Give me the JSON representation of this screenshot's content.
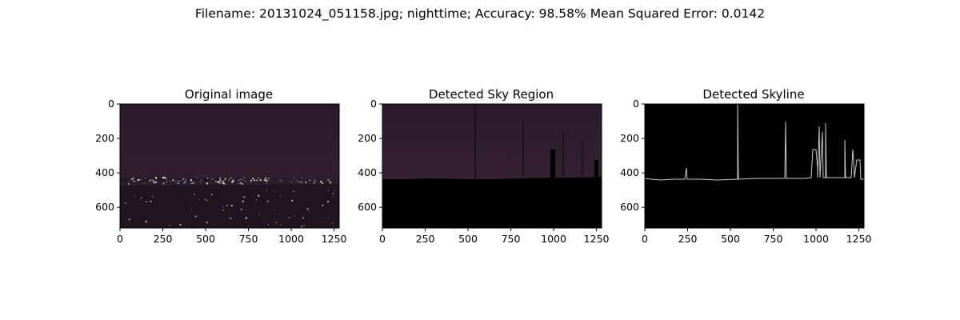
{
  "figure": {
    "suptitle": "Filename: 20131024_051158.jpg; nighttime; Accuracy: 98.58% Mean Squared Error: 0.0142"
  },
  "panels": [
    {
      "title": "Original image",
      "x_ticks": [
        "0",
        "250",
        "500",
        "750",
        "1000",
        "1250"
      ],
      "y_ticks": [
        "0",
        "200",
        "400",
        "600"
      ]
    },
    {
      "title": "Detected Sky Region",
      "x_ticks": [
        "0",
        "250",
        "500",
        "750",
        "1000",
        "1250"
      ],
      "y_ticks": [
        "0",
        "200",
        "400",
        "600"
      ]
    },
    {
      "title": "Detected Skyline",
      "x_ticks": [
        "0",
        "250",
        "500",
        "750",
        "1000",
        "1250"
      ],
      "y_ticks": [
        "0",
        "200",
        "400",
        "600"
      ]
    }
  ],
  "chart_data": {
    "type": "image",
    "xlim": [
      0,
      1280
    ],
    "ylim": [
      720,
      0
    ],
    "x_tick_values": [
      0,
      250,
      500,
      750,
      1000,
      1250
    ],
    "y_tick_values": [
      0,
      200,
      400,
      600
    ],
    "colors": {
      "night_sky": "#2a1a2a",
      "ground": "#000000",
      "skyline_edge": "#c8c8c8",
      "city_lights": "#f2e8c8"
    }
  }
}
